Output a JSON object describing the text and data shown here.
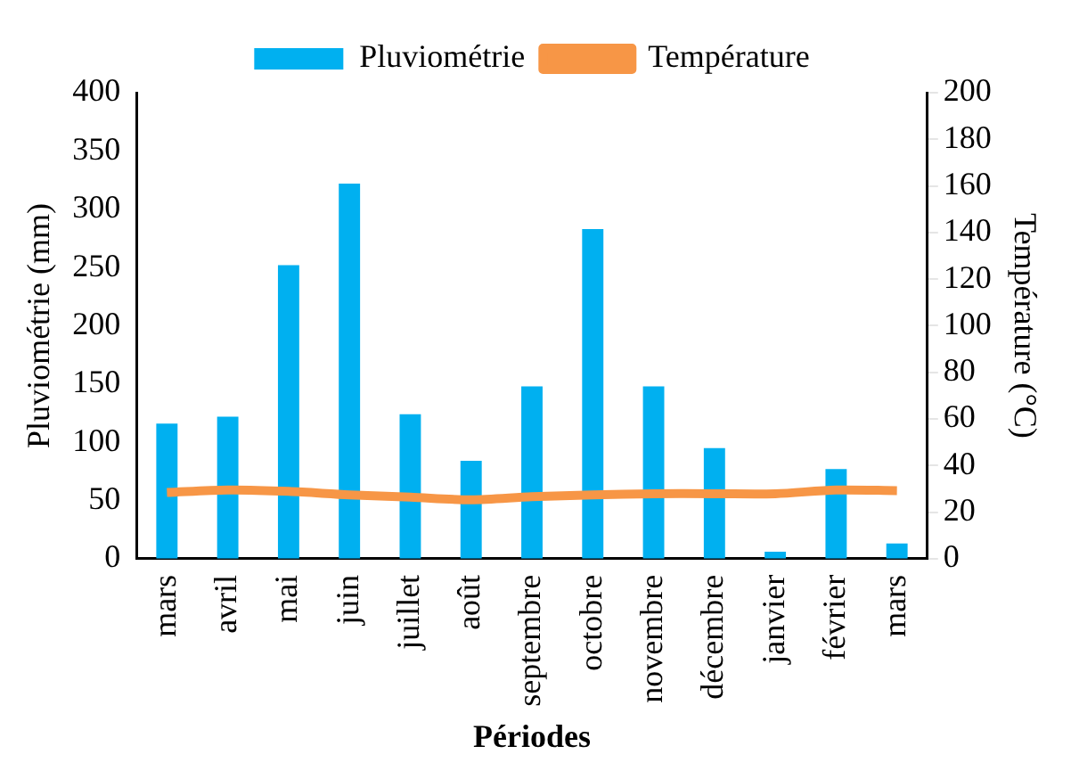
{
  "chart_data": {
    "type": "bar",
    "xlabel": "Périodes",
    "ylabel": "Pluviométrie (mm)",
    "y2label": "Température (°C)",
    "categories": [
      "mars",
      "avril",
      "mai",
      "juin",
      "juillet",
      "août",
      "septembre",
      "octobre",
      "novembre",
      "décembre",
      "janvier",
      "février",
      "mars"
    ],
    "series": [
      {
        "name": "Pluviométrie",
        "color": "#00b0f0",
        "values": [
          116,
          122,
          252,
          322,
          124,
          84,
          148,
          283,
          148,
          95,
          6,
          77,
          13
        ]
      },
      {
        "name": "Température",
        "type": "line",
        "axis": "y2",
        "color": "#f79646",
        "values": [
          28.4,
          29.5,
          28.9,
          27.4,
          26.4,
          25.3,
          26.6,
          27.4,
          27.9,
          27.9,
          27.9,
          29.5,
          29.2
        ]
      }
    ],
    "ylim": [
      0,
      400
    ],
    "yticks": [
      0,
      50,
      100,
      150,
      200,
      250,
      300,
      350,
      400
    ],
    "y2lim": [
      0,
      200
    ],
    "y2ticks": [
      0,
      20,
      40,
      60,
      80,
      100,
      120,
      140,
      160,
      180,
      200
    ],
    "grid": false,
    "legend": "top",
    "marker": "none"
  }
}
